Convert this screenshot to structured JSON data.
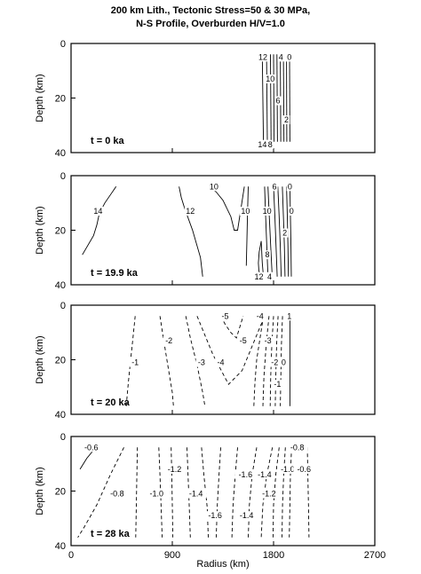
{
  "figure": {
    "title_line1": "200  km  Lith.,  Tectonic  Stress=50  &  30  MPa,",
    "title_line2": "N-S   Profile,   Overburden   H/V=1.0",
    "xlabel": "Radius (km)",
    "ylabel": "Depth (km)"
  },
  "chart_data": [
    {
      "type": "line",
      "panel_label": "t  =  0  ka",
      "xlim": [
        0,
        2700
      ],
      "ylim": [
        40,
        0
      ],
      "x_ticks": [
        "0",
        "900",
        "1800",
        "2700"
      ],
      "y_ticks": [
        "0",
        "20",
        "40"
      ],
      "grid": false,
      "series": [
        {
          "style": "solid",
          "x": [
            1700,
            1710
          ],
          "y": [
            4,
            36
          ]
        },
        {
          "style": "solid",
          "x": [
            1738,
            1745
          ],
          "y": [
            4,
            36
          ]
        },
        {
          "style": "solid",
          "x": [
            1772,
            1778
          ],
          "y": [
            4,
            36
          ]
        },
        {
          "style": "solid",
          "x": [
            1800,
            1805
          ],
          "y": [
            4,
            36
          ]
        },
        {
          "style": "solid",
          "x": [
            1830,
            1835
          ],
          "y": [
            4,
            36
          ]
        },
        {
          "style": "solid",
          "x": [
            1860,
            1864
          ],
          "y": [
            4,
            36
          ]
        },
        {
          "style": "solid",
          "x": [
            1888,
            1892
          ],
          "y": [
            4,
            36
          ]
        },
        {
          "style": "solid",
          "x": [
            1915,
            1918
          ],
          "y": [
            4,
            36
          ]
        },
        {
          "style": "solid",
          "x": [
            1942,
            1945
          ],
          "y": [
            4,
            36
          ]
        }
      ],
      "labels": [
        {
          "text": "12",
          "x": 1705,
          "y": 5
        },
        {
          "text": "4",
          "x": 1865,
          "y": 5
        },
        {
          "text": "0",
          "x": 1940,
          "y": 5
        },
        {
          "text": "10",
          "x": 1770,
          "y": 13
        },
        {
          "text": "6",
          "x": 1840,
          "y": 21
        },
        {
          "text": "2",
          "x": 1915,
          "y": 28
        },
        {
          "text": "14",
          "x": 1700,
          "y": 37
        },
        {
          "text": "8",
          "x": 1770,
          "y": 37
        }
      ]
    },
    {
      "type": "line",
      "panel_label": "t  =  19.9  ka",
      "xlim": [
        0,
        2700
      ],
      "ylim": [
        40,
        0
      ],
      "x_ticks": [
        "0",
        "900",
        "1800",
        "2700"
      ],
      "y_ticks": [
        "0",
        "20",
        "40"
      ],
      "grid": false,
      "series": [
        {
          "style": "solid",
          "x": [
            400,
            300,
            250,
            230,
            200,
            100
          ],
          "y": [
            4,
            10,
            14,
            18,
            22,
            29
          ]
        },
        {
          "style": "solid",
          "x": [
            960,
            980,
            1010,
            1080,
            1150,
            1170
          ],
          "y": [
            4,
            8,
            12,
            20,
            30,
            37
          ]
        },
        {
          "style": "solid",
          "x": [
            1230,
            1290,
            1350,
            1420,
            1450,
            1480,
            1510,
            1540
          ],
          "y": [
            4,
            6,
            9,
            15,
            20,
            20,
            12,
            4
          ]
        },
        {
          "style": "solid",
          "x": [
            1575,
            1568,
            1562,
            1558
          ],
          "y": [
            4,
            15,
            25,
            33
          ]
        },
        {
          "style": "solid",
          "x": [
            1690,
            1672,
            1665,
            1670,
            1690
          ],
          "y": [
            24,
            28,
            32,
            35,
            37
          ]
        },
        {
          "style": "solid",
          "x": [
            1690,
            1700,
            1710
          ],
          "y": [
            24,
            32,
            37
          ]
        },
        {
          "style": "solid",
          "x": [
            1720,
            1730,
            1740,
            1750
          ],
          "y": [
            4,
            15,
            26,
            37
          ]
        },
        {
          "style": "solid",
          "x": [
            1750,
            1762,
            1775,
            1788
          ],
          "y": [
            4,
            15,
            26,
            37
          ]
        },
        {
          "style": "solid",
          "x": [
            1800,
            1812,
            1822,
            1832
          ],
          "y": [
            4,
            15,
            26,
            37
          ]
        },
        {
          "style": "solid",
          "x": [
            1838,
            1850,
            1860,
            1868
          ],
          "y": [
            4,
            15,
            26,
            37
          ]
        },
        {
          "style": "solid",
          "x": [
            1878,
            1888,
            1896,
            1902
          ],
          "y": [
            4,
            15,
            26,
            37
          ]
        },
        {
          "style": "solid",
          "x": [
            1915,
            1922,
            1928,
            1932
          ],
          "y": [
            4,
            15,
            26,
            37
          ]
        },
        {
          "style": "solid",
          "x": [
            1945,
            1950,
            1955,
            1958
          ],
          "y": [
            4,
            15,
            26,
            37
          ]
        }
      ],
      "labels": [
        {
          "text": "14",
          "x": 240,
          "y": 13
        },
        {
          "text": "10",
          "x": 1270,
          "y": 4
        },
        {
          "text": "12",
          "x": 1060,
          "y": 13
        },
        {
          "text": "10",
          "x": 1550,
          "y": 13
        },
        {
          "text": "6",
          "x": 1808,
          "y": 4
        },
        {
          "text": "0",
          "x": 1945,
          "y": 4
        },
        {
          "text": "10",
          "x": 1742,
          "y": 13
        },
        {
          "text": "0",
          "x": 1960,
          "y": 13
        },
        {
          "text": "2",
          "x": 1900,
          "y": 21
        },
        {
          "text": "8",
          "x": 1745,
          "y": 29
        },
        {
          "text": "12",
          "x": 1670,
          "y": 37
        },
        {
          "text": "4",
          "x": 1765,
          "y": 37
        }
      ]
    },
    {
      "type": "line",
      "panel_label": "t  =  20  ka",
      "xlim": [
        0,
        2700
      ],
      "ylim": [
        40,
        0
      ],
      "x_ticks": [
        "0",
        "900",
        "1800",
        "2700"
      ],
      "y_ticks": [
        "0",
        "20",
        "40"
      ],
      "grid": false,
      "series": [
        {
          "style": "dashed",
          "x": [
            570,
            550,
            530,
            510,
            490
          ],
          "y": [
            4,
            12,
            20,
            28,
            37
          ]
        },
        {
          "style": "dashed",
          "x": [
            790,
            820,
            860,
            900,
            910
          ],
          "y": [
            4,
            12,
            22,
            32,
            37
          ]
        },
        {
          "style": "dashed",
          "x": [
            1020,
            1060,
            1120,
            1170,
            1190
          ],
          "y": [
            4,
            12,
            22,
            32,
            37
          ]
        },
        {
          "style": "dashed",
          "x": [
            1120,
            1170,
            1260,
            1400,
            1520,
            1640,
            1720
          ],
          "y": [
            4,
            9,
            18,
            29,
            24,
            12,
            4
          ]
        },
        {
          "style": "dashed",
          "x": [
            1330,
            1370,
            1420,
            1470,
            1500,
            1530
          ],
          "y": [
            4,
            7,
            10,
            12,
            8,
            4
          ]
        },
        {
          "style": "dashed",
          "x": [
            1710,
            1680,
            1650,
            1635,
            1625
          ],
          "y": [
            4,
            12,
            20,
            28,
            37
          ]
        },
        {
          "style": "dashed",
          "x": [
            1760,
            1735,
            1715,
            1705
          ],
          "y": [
            4,
            14,
            26,
            37
          ]
        },
        {
          "style": "dashed",
          "x": [
            1800,
            1785,
            1775,
            1770
          ],
          "y": [
            4,
            14,
            26,
            37
          ]
        },
        {
          "style": "dashed",
          "x": [
            1840,
            1828,
            1820,
            1815
          ],
          "y": [
            4,
            14,
            26,
            37
          ]
        },
        {
          "style": "dashed",
          "x": [
            1880,
            1870,
            1865,
            1860
          ],
          "y": [
            4,
            14,
            26,
            37
          ]
        },
        {
          "style": "solid",
          "x": [
            1945,
            1945
          ],
          "y": [
            4,
            37
          ]
        }
      ],
      "labels": [
        {
          "text": "-5",
          "x": 1370,
          "y": 4
        },
        {
          "text": "-4",
          "x": 1680,
          "y": 4
        },
        {
          "text": "1",
          "x": 1940,
          "y": 4
        },
        {
          "text": "-2",
          "x": 870,
          "y": 13
        },
        {
          "text": "-5",
          "x": 1530,
          "y": 13
        },
        {
          "text": "-3",
          "x": 1750,
          "y": 13
        },
        {
          "text": "-1",
          "x": 570,
          "y": 21
        },
        {
          "text": "-3",
          "x": 1160,
          "y": 21
        },
        {
          "text": "-4",
          "x": 1330,
          "y": 21
        },
        {
          "text": "-2",
          "x": 1810,
          "y": 21
        },
        {
          "text": "0",
          "x": 1890,
          "y": 21
        },
        {
          "text": "-1",
          "x": 1835,
          "y": 29
        }
      ]
    },
    {
      "type": "line",
      "panel_label": "t  =  28  ka",
      "xlim": [
        0,
        2700
      ],
      "ylim": [
        40,
        0
      ],
      "x_ticks": [
        "0",
        "900",
        "1800",
        "2700"
      ],
      "y_ticks": [
        "0",
        "20",
        "40"
      ],
      "grid": false,
      "series": [
        {
          "style": "solid",
          "x": [
            80,
            140,
            200,
            230
          ],
          "y": [
            12,
            8,
            5,
            3
          ]
        },
        {
          "style": "dashed",
          "x": [
            470,
            350,
            230,
            120,
            60
          ],
          "y": [
            4,
            14,
            25,
            33,
            37
          ]
        },
        {
          "style": "dashed",
          "x": [
            590,
            585,
            580,
            575
          ],
          "y": [
            4,
            14,
            25,
            37
          ]
        },
        {
          "style": "dashed",
          "x": [
            780,
            790,
            800,
            810
          ],
          "y": [
            4,
            14,
            25,
            37
          ]
        },
        {
          "style": "dashed",
          "x": [
            890,
            895,
            900,
            905
          ],
          "y": [
            4,
            14,
            25,
            37
          ]
        },
        {
          "style": "dashed",
          "x": [
            1030,
            1040,
            1050,
            1060
          ],
          "y": [
            4,
            14,
            25,
            37
          ]
        },
        {
          "style": "dashed",
          "x": [
            1160,
            1180,
            1210,
            1220
          ],
          "y": [
            4,
            14,
            26,
            37
          ]
        },
        {
          "style": "dashed",
          "x": [
            1330,
            1315,
            1300,
            1290
          ],
          "y": [
            4,
            14,
            25,
            37
          ]
        },
        {
          "style": "dashed",
          "x": [
            1480,
            1460,
            1440,
            1430
          ],
          "y": [
            4,
            14,
            25,
            37
          ]
        },
        {
          "style": "dashed",
          "x": [
            1650,
            1610,
            1585,
            1575
          ],
          "y": [
            4,
            14,
            25,
            37
          ]
        },
        {
          "style": "dashed",
          "x": [
            1790,
            1740,
            1705,
            1690
          ],
          "y": [
            4,
            14,
            25,
            37
          ]
        },
        {
          "style": "dashed",
          "x": [
            1850,
            1820,
            1800,
            1795
          ],
          "y": [
            4,
            14,
            25,
            37
          ]
        },
        {
          "style": "dashed",
          "x": [
            1905,
            1890,
            1880,
            1875
          ],
          "y": [
            4,
            14,
            25,
            37
          ]
        },
        {
          "style": "dashed",
          "x": [
            1960,
            1950,
            1945,
            1940
          ],
          "y": [
            4,
            14,
            25,
            37
          ]
        },
        {
          "style": "dashed",
          "x": [
            2100,
            2105,
            2110,
            2115
          ],
          "y": [
            4,
            14,
            25,
            37
          ]
        }
      ],
      "labels": [
        {
          "text": "-0.6",
          "x": 180,
          "y": 4
        },
        {
          "text": "-0.8",
          "x": 2010,
          "y": 4
        },
        {
          "text": "-1.2",
          "x": 920,
          "y": 12
        },
        {
          "text": "-1.0",
          "x": 1925,
          "y": 12
        },
        {
          "text": "-0.6",
          "x": 2070,
          "y": 12
        },
        {
          "text": "-1.6",
          "x": 1550,
          "y": 14
        },
        {
          "text": "-1.4",
          "x": 1720,
          "y": 14
        },
        {
          "text": "-0.8",
          "x": 410,
          "y": 21
        },
        {
          "text": "-1.0",
          "x": 760,
          "y": 21
        },
        {
          "text": "-1.4",
          "x": 1110,
          "y": 21
        },
        {
          "text": "-1.2",
          "x": 1760,
          "y": 21
        },
        {
          "text": "-1.6",
          "x": 1280,
          "y": 29
        },
        {
          "text": "-1.4",
          "x": 1560,
          "y": 29
        }
      ]
    }
  ]
}
